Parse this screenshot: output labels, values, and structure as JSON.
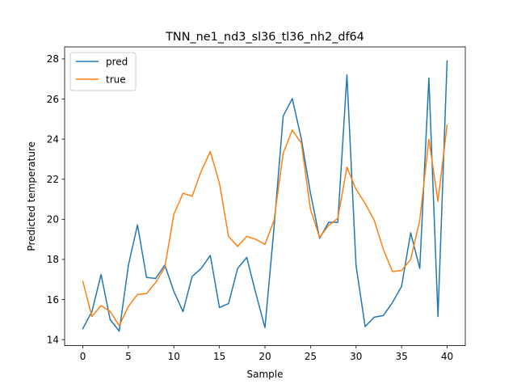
{
  "chart_data": {
    "type": "line",
    "title": "TNN_ne1_nd3_sl36_tl36_nh2_df64",
    "xlabel": "Sample",
    "ylabel": "Predicted temperature",
    "xlim": [
      -2,
      42
    ],
    "ylim": [
      13.7,
      28.6
    ],
    "xticks": [
      0,
      5,
      10,
      15,
      20,
      25,
      30,
      35,
      40
    ],
    "yticks": [
      14,
      16,
      18,
      20,
      22,
      24,
      26,
      28
    ],
    "grid": false,
    "legend_position": "top-left",
    "x": [
      0,
      1,
      2,
      3,
      4,
      5,
      6,
      7,
      8,
      9,
      10,
      11,
      12,
      13,
      14,
      15,
      16,
      17,
      18,
      19,
      20,
      21,
      22,
      23,
      24,
      25,
      26,
      27,
      28,
      29,
      30,
      31,
      32,
      33,
      34,
      35,
      36,
      37,
      38,
      39,
      40
    ],
    "series": [
      {
        "name": "pred",
        "color": "#1f77b4",
        "values": [
          14.55,
          15.4,
          17.25,
          15.0,
          14.42,
          17.7,
          19.72,
          17.1,
          17.05,
          17.72,
          16.4,
          15.4,
          17.15,
          17.55,
          18.2,
          15.6,
          15.8,
          17.55,
          18.1,
          16.3,
          14.6,
          19.6,
          25.15,
          26.02,
          24.0,
          21.3,
          19.05,
          19.85,
          19.85,
          27.2,
          17.7,
          14.65,
          15.12,
          15.2,
          15.85,
          16.65,
          19.33,
          17.55,
          27.05,
          15.15,
          27.9
        ]
      },
      {
        "name": "true",
        "color": "#ff7f0e",
        "values": [
          16.9,
          15.15,
          15.7,
          15.4,
          14.7,
          15.65,
          16.25,
          16.3,
          16.85,
          17.6,
          20.25,
          21.3,
          21.15,
          22.4,
          23.38,
          21.8,
          19.15,
          18.65,
          19.15,
          19.0,
          18.75,
          19.95,
          23.3,
          24.45,
          23.8,
          20.5,
          19.1,
          19.7,
          20.05,
          22.6,
          21.5,
          20.8,
          19.95,
          18.5,
          17.4,
          17.45,
          18.0,
          19.95,
          24.0,
          20.9,
          24.7
        ]
      }
    ]
  }
}
